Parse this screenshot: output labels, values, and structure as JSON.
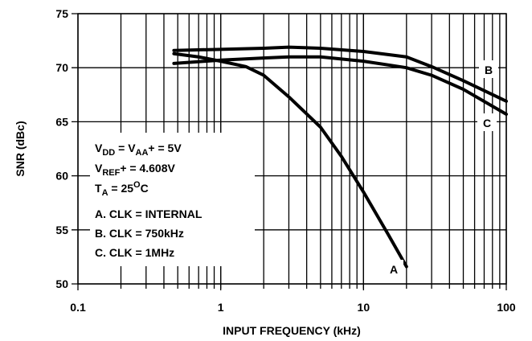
{
  "chart_data": {
    "type": "line",
    "xlabel": "INPUT FREQUENCY (kHz)",
    "ylabel": "SNR (dBc)",
    "xscale": "log",
    "xlim": [
      0.1,
      100
    ],
    "ylim": [
      50,
      75
    ],
    "xticks": [
      0.1,
      1,
      10,
      100
    ],
    "yticks": [
      50,
      55,
      60,
      65,
      70,
      75
    ],
    "xgrid": [
      0.2,
      0.3,
      0.4,
      0.5,
      0.6,
      0.7,
      0.8,
      0.9,
      1,
      2,
      3,
      4,
      5,
      6,
      7,
      8,
      9,
      10,
      20,
      30,
      40,
      50,
      60,
      70,
      80,
      90
    ],
    "grid": true,
    "series": [
      {
        "name": "A",
        "color": "#000000",
        "x": [
          0.47,
          0.7,
          1,
          1.5,
          2,
          3,
          5,
          7,
          10,
          15,
          20
        ],
        "values": [
          71.3,
          71.0,
          70.6,
          70.1,
          69.3,
          67.3,
          64.5,
          61.8,
          58.5,
          54.5,
          51.6
        ]
      },
      {
        "name": "B",
        "color": "#000000",
        "x": [
          0.47,
          1,
          2,
          3,
          5,
          10,
          20,
          30,
          50,
          100
        ],
        "values": [
          71.6,
          71.7,
          71.8,
          71.9,
          71.8,
          71.5,
          71.0,
          70.1,
          68.8,
          66.9
        ]
      },
      {
        "name": "C",
        "color": "#000000",
        "x": [
          0.47,
          1,
          2,
          3,
          5,
          10,
          20,
          30,
          50,
          100
        ],
        "values": [
          70.4,
          70.7,
          70.9,
          71.0,
          71.0,
          70.6,
          70.0,
          69.3,
          68.0,
          65.7
        ]
      }
    ],
    "annotations": [
      [
        {
          "text": "V"
        },
        {
          "sub": "DD"
        },
        {
          "text": " = V"
        },
        {
          "sub": "AA"
        },
        {
          "text": "+ = 5V"
        }
      ],
      [
        {
          "text": "V"
        },
        {
          "sub": "REF"
        },
        {
          "text": "+ = 4.608V"
        }
      ],
      [
        {
          "text": "T"
        },
        {
          "sub": "A"
        },
        {
          "text": " = 25"
        },
        {
          "sup": "O"
        },
        {
          "text": "C"
        }
      ],
      [
        {
          "text": "A.  CLK = INTERNAL"
        }
      ],
      [
        {
          "text": "B.  CLK = 750kHz"
        }
      ],
      [
        {
          "text": "C.  CLK = 1MHz"
        }
      ]
    ]
  }
}
